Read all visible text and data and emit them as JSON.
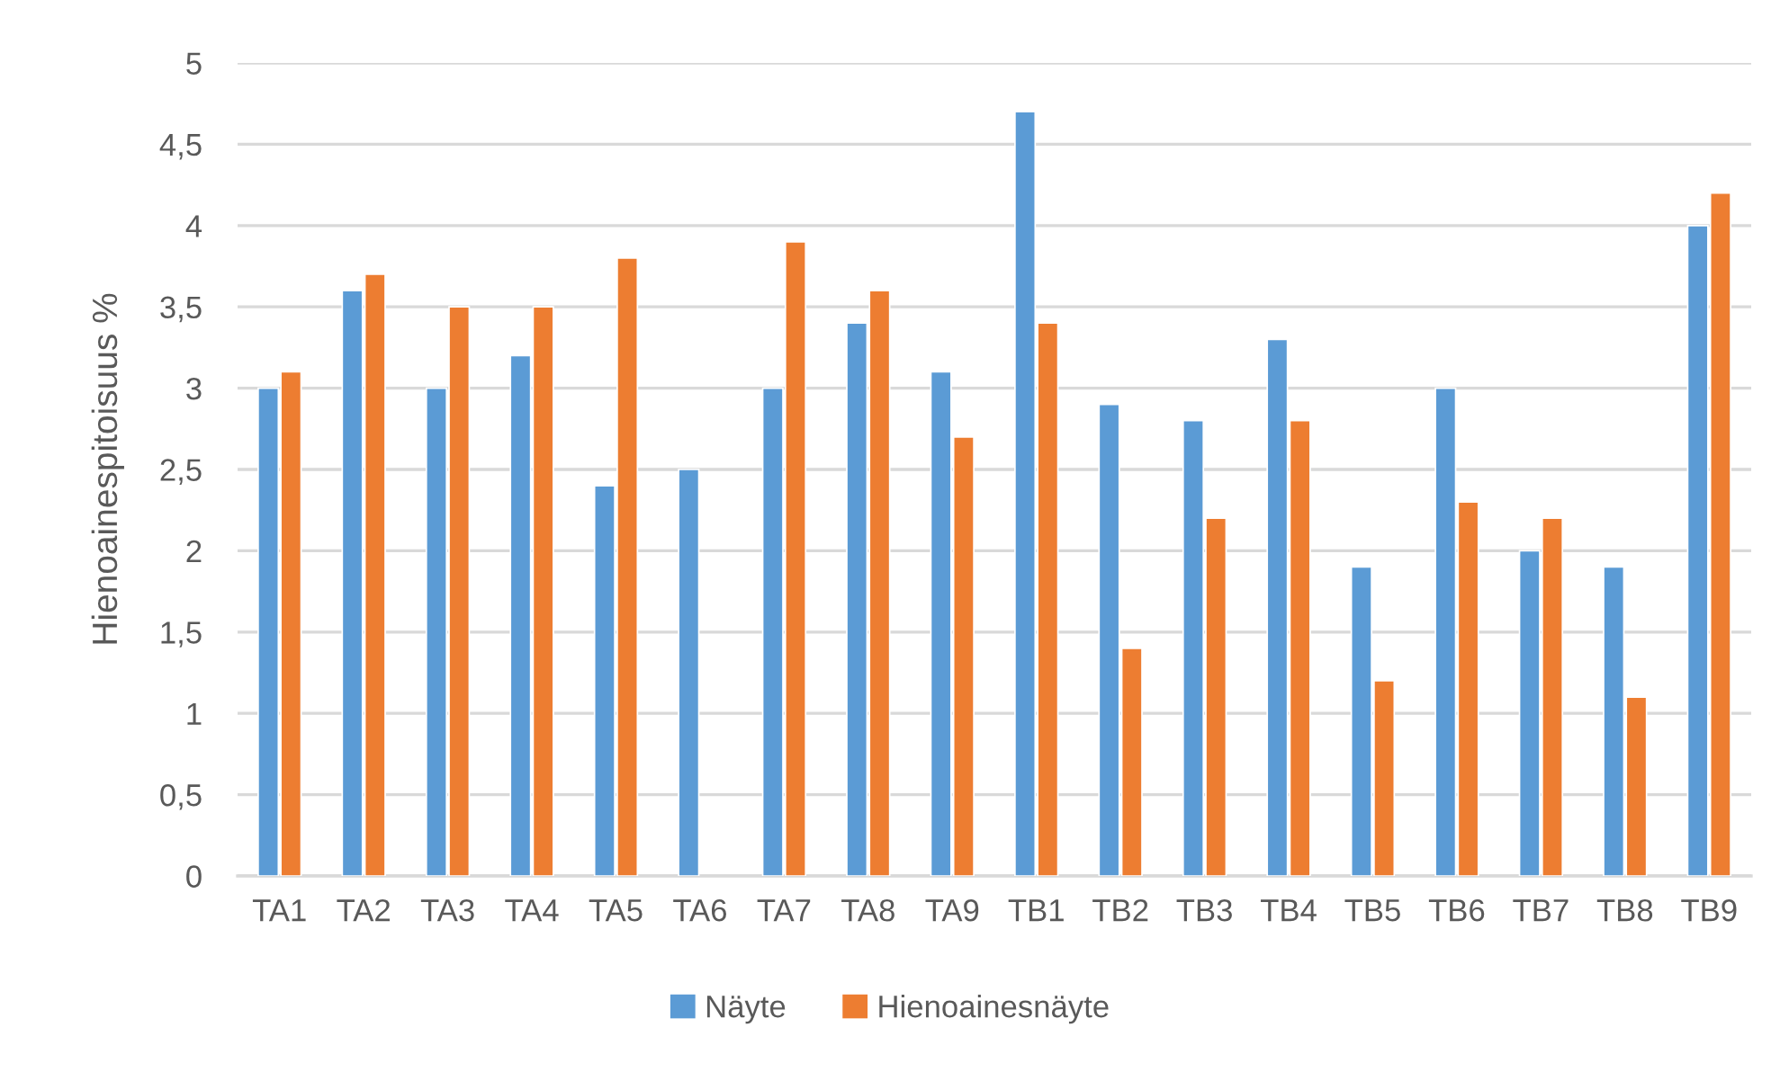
{
  "chart_data": {
    "type": "bar",
    "ylabel": "Hienoainespitoisuus %",
    "categories": [
      "TA1",
      "TA2",
      "TA3",
      "TA4",
      "TA5",
      "TA6",
      "TA7",
      "TA8",
      "TA9",
      "TB1",
      "TB2",
      "TB3",
      "TB4",
      "TB5",
      "TB6",
      "TB7",
      "TB8",
      "TB9"
    ],
    "series": [
      {
        "name": "Näyte",
        "color": "#5b9bd5",
        "values": [
          3.0,
          3.6,
          3.0,
          3.2,
          2.4,
          2.5,
          3.0,
          3.4,
          3.1,
          4.7,
          2.9,
          2.8,
          3.3,
          1.9,
          3.0,
          2.0,
          1.9,
          4.0
        ]
      },
      {
        "name": "Hienoainesnäyte",
        "color": "#ed7d31",
        "values": [
          3.1,
          3.7,
          3.5,
          3.5,
          3.8,
          null,
          3.9,
          3.6,
          2.7,
          3.4,
          1.4,
          2.2,
          2.8,
          1.2,
          2.3,
          2.2,
          1.1,
          4.2
        ]
      }
    ],
    "ylim": [
      0,
      5
    ],
    "yticks": [
      0,
      {
        "value": 0.5,
        "label": "0,5"
      },
      1,
      {
        "value": 1.5,
        "label": "1,5"
      },
      2,
      {
        "value": 2.5,
        "label": "2,5"
      },
      3,
      {
        "value": 3.5,
        "label": "3,5"
      },
      4,
      {
        "value": 4.5,
        "label": "4,5"
      },
      5
    ],
    "grid": "y",
    "legend": "bottom"
  }
}
